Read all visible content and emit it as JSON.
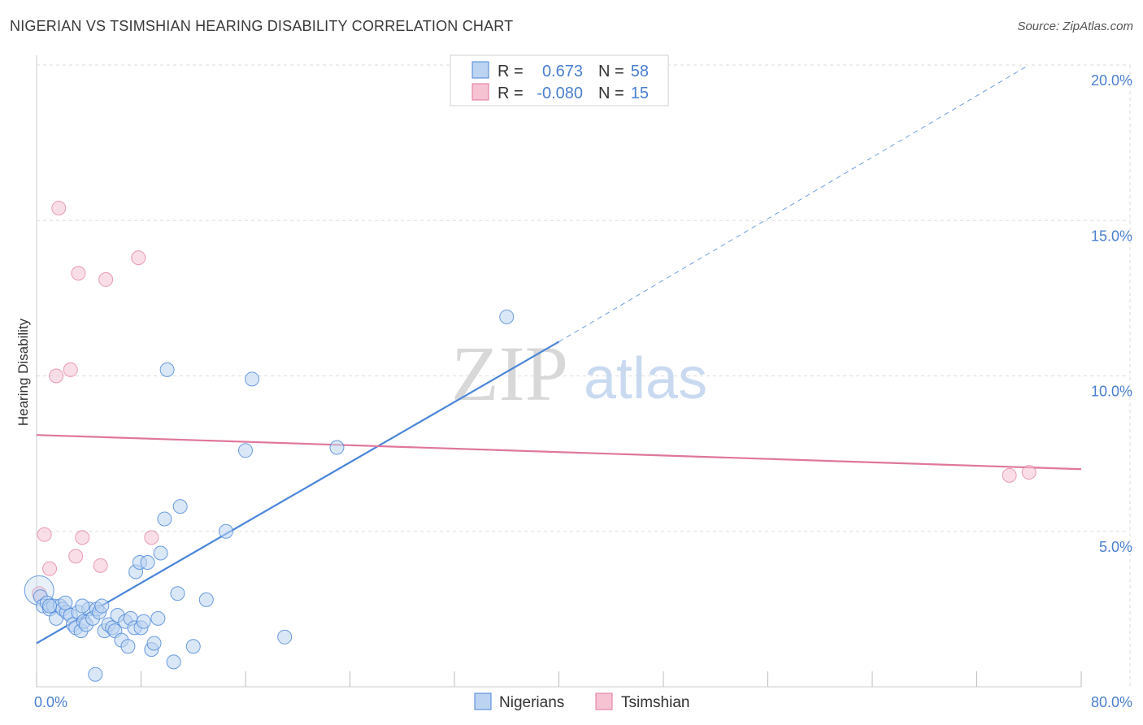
{
  "title": "NIGERIAN VS TSIMSHIAN HEARING DISABILITY CORRELATION CHART",
  "source": "Source: ZipAtlas.com",
  "watermark": {
    "zip": "ZIP",
    "atlas": "atlas"
  },
  "legend": {
    "rows": [
      {
        "r_label": "R =",
        "r_value": "0.673",
        "n_label": "N =",
        "n_value": "58"
      },
      {
        "r_label": "R =",
        "r_value": "-0.080",
        "n_label": "N =",
        "n_value": "15"
      }
    ]
  },
  "colors": {
    "blue": "#4a86d8",
    "blue_fill": "#bcd3f1",
    "pink": "#e0769c",
    "pink_fill": "#f6c3d3",
    "tick_text": "#4a7fd0",
    "grid": "#dddddd"
  },
  "chart_data": {
    "type": "scatter",
    "xlabel": "",
    "ylabel": "Hearing Disability",
    "xlim": [
      0,
      80
    ],
    "ylim": [
      0,
      20
    ],
    "x_tick_labels": [
      "0.0%",
      "80.0%"
    ],
    "y_ticks": [
      5,
      10,
      15,
      20
    ],
    "y_tick_labels": [
      "5.0%",
      "10.0%",
      "15.0%",
      "20.0%"
    ],
    "grid": true,
    "legend_position": "bottom-center",
    "series": [
      {
        "name": "Nigerians",
        "color": "#4a86d8",
        "trend": {
          "x0": 0,
          "y0": 1.4,
          "x1": 40,
          "y1": 11.1,
          "dashed_to_x": 76,
          "dashed_to_y": 20.0
        },
        "points": [
          [
            0.2,
            3.1
          ],
          [
            0.3,
            2.9
          ],
          [
            0.5,
            2.6
          ],
          [
            0.8,
            2.7
          ],
          [
            1.0,
            2.5
          ],
          [
            1.3,
            2.6
          ],
          [
            1.5,
            2.2
          ],
          [
            1.8,
            2.6
          ],
          [
            2.0,
            2.5
          ],
          [
            2.3,
            2.4
          ],
          [
            2.6,
            2.3
          ],
          [
            2.8,
            2.0
          ],
          [
            3.0,
            1.9
          ],
          [
            3.2,
            2.4
          ],
          [
            3.4,
            1.8
          ],
          [
            3.6,
            2.1
          ],
          [
            3.8,
            2.0
          ],
          [
            4.0,
            2.5
          ],
          [
            4.3,
            2.2
          ],
          [
            4.6,
            2.5
          ],
          [
            4.8,
            2.4
          ],
          [
            5.0,
            2.6
          ],
          [
            5.2,
            1.8
          ],
          [
            5.5,
            2.0
          ],
          [
            5.8,
            1.9
          ],
          [
            6.0,
            1.8
          ],
          [
            6.2,
            2.3
          ],
          [
            6.5,
            1.5
          ],
          [
            6.8,
            2.1
          ],
          [
            7.0,
            1.3
          ],
          [
            7.2,
            2.2
          ],
          [
            7.5,
            1.9
          ],
          [
            7.6,
            3.7
          ],
          [
            7.9,
            4.0
          ],
          [
            8.0,
            1.9
          ],
          [
            8.2,
            2.1
          ],
          [
            8.5,
            4.0
          ],
          [
            8.8,
            1.2
          ],
          [
            9.0,
            1.4
          ],
          [
            9.3,
            2.2
          ],
          [
            9.5,
            4.3
          ],
          [
            9.8,
            5.4
          ],
          [
            10.0,
            10.2
          ],
          [
            10.5,
            0.8
          ],
          [
            10.8,
            3.0
          ],
          [
            11.0,
            5.8
          ],
          [
            12.0,
            1.3
          ],
          [
            13.0,
            2.8
          ],
          [
            14.5,
            5.0
          ],
          [
            16.0,
            7.6
          ],
          [
            16.5,
            9.9
          ],
          [
            19.0,
            1.6
          ],
          [
            23.0,
            7.7
          ],
          [
            36.0,
            11.9
          ],
          [
            4.5,
            0.4
          ],
          [
            3.5,
            2.6
          ],
          [
            2.2,
            2.7
          ],
          [
            1.0,
            2.6
          ]
        ]
      },
      {
        "name": "Tsimshian",
        "color": "#e0769c",
        "trend": {
          "x0": 0,
          "y0": 8.1,
          "x1": 80,
          "y1": 7.0
        },
        "points": [
          [
            0.2,
            3.0
          ],
          [
            0.6,
            4.9
          ],
          [
            1.0,
            3.8
          ],
          [
            1.5,
            10.0
          ],
          [
            1.7,
            15.4
          ],
          [
            2.6,
            10.2
          ],
          [
            3.0,
            4.2
          ],
          [
            3.2,
            13.3
          ],
          [
            3.5,
            4.8
          ],
          [
            4.9,
            3.9
          ],
          [
            5.3,
            13.1
          ],
          [
            7.8,
            13.8
          ],
          [
            8.8,
            4.8
          ],
          [
            74.5,
            6.8
          ],
          [
            76.0,
            6.9
          ]
        ]
      }
    ]
  }
}
